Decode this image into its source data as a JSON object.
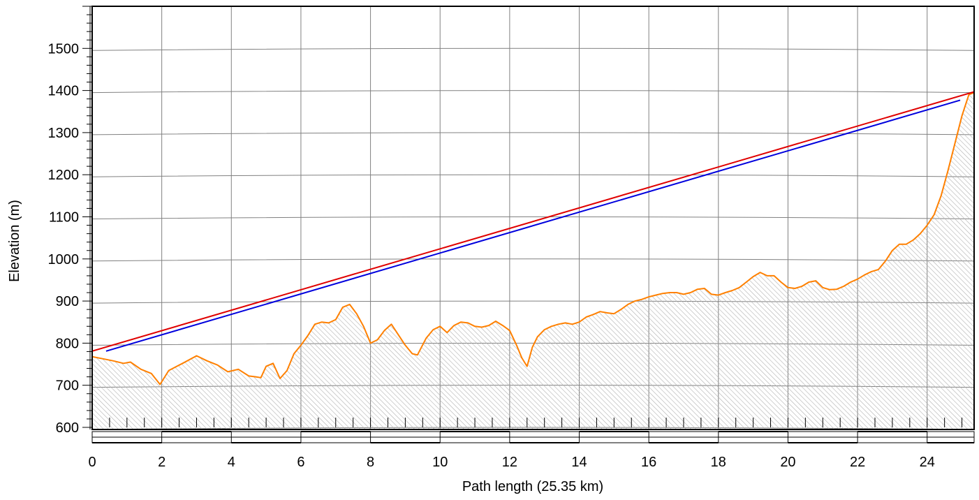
{
  "chart_data": {
    "type": "area",
    "xlabel": "Path length (25.35 km)",
    "ylabel": "Elevation (m)",
    "xlim": [
      0,
      25.35
    ],
    "ylim": [
      595,
      1600
    ],
    "x_ticks": [
      0,
      2,
      4,
      6,
      8,
      10,
      12,
      14,
      16,
      18,
      20,
      22,
      24
    ],
    "y_ticks": [
      600,
      700,
      800,
      900,
      1000,
      1100,
      1200,
      1300,
      1400,
      1500
    ],
    "grid": true,
    "colors": {
      "terrain": "#ff8000",
      "line_of_sight": "#e00000",
      "fresnel": "#0000dd",
      "fill_hatch": "#b0b0b0",
      "grid": "#808080"
    },
    "series": [
      {
        "x": [
          0,
          0.3,
          0.6,
          0.9,
          1.1,
          1.4,
          1.7,
          1.95,
          2.2,
          2.6,
          3.0,
          3.3,
          3.6,
          3.9,
          4.2,
          4.5,
          4.7,
          4.85,
          5.0,
          5.2,
          5.4,
          5.6,
          5.8,
          6.0,
          6.2,
          6.4,
          6.6,
          6.8,
          7.0,
          7.2,
          7.4,
          7.6,
          7.8,
          8.0,
          8.2,
          8.4,
          8.6,
          8.8,
          9.0,
          9.2,
          9.35,
          9.6,
          9.8,
          10.0,
          10.2,
          10.4,
          10.6,
          10.8,
          11.0,
          11.2,
          11.4,
          11.6,
          11.8,
          12.0,
          12.2,
          12.35,
          12.5,
          12.65,
          12.8,
          13.0,
          13.2,
          13.4,
          13.6,
          13.8,
          14.0,
          14.2,
          14.4,
          14.6,
          14.8,
          15.0,
          15.2,
          15.4,
          15.6,
          15.8,
          16.0,
          16.2,
          16.4,
          16.6,
          16.8,
          17.0,
          17.2,
          17.4,
          17.6,
          17.8,
          18.0,
          18.2,
          18.4,
          18.6,
          18.8,
          19.0,
          19.2,
          19.4,
          19.6,
          19.8,
          20.0,
          20.2,
          20.4,
          20.6,
          20.8,
          21.0,
          21.2,
          21.4,
          21.6,
          21.8,
          22.0,
          22.2,
          22.4,
          22.6,
          22.8,
          23.0,
          23.2,
          23.4,
          23.6,
          23.8,
          24.0,
          24.2,
          24.4,
          24.6,
          24.8,
          25.0,
          25.1,
          25.2,
          25.35
        ],
        "y": [
          768,
          763,
          758,
          752,
          755,
          738,
          728,
          702,
          735,
          752,
          770,
          758,
          748,
          732,
          738,
          722,
          720,
          718,
          745,
          752,
          716,
          735,
          775,
          795,
          818,
          845,
          850,
          848,
          856,
          885,
          892,
          870,
          840,
          800,
          808,
          830,
          845,
          820,
          795,
          775,
          772,
          812,
          832,
          840,
          825,
          842,
          850,
          848,
          840,
          838,
          842,
          852,
          842,
          830,
          795,
          765,
          745,
          790,
          815,
          832,
          840,
          845,
          848,
          845,
          850,
          862,
          868,
          875,
          872,
          870,
          880,
          892,
          900,
          904,
          910,
          914,
          918,
          920,
          920,
          916,
          920,
          928,
          930,
          916,
          914,
          920,
          925,
          932,
          945,
          958,
          968,
          960,
          960,
          945,
          932,
          930,
          935,
          945,
          948,
          932,
          927,
          928,
          935,
          945,
          952,
          962,
          970,
          975,
          995,
          1020,
          1035,
          1035,
          1045,
          1060,
          1080,
          1105,
          1150,
          1210,
          1275,
          1340,
          1365,
          1390,
          1395
        ]
      },
      {
        "x": [
          0,
          25.35
        ],
        "y": [
          781,
          1397
        ]
      },
      {
        "x": [
          0.4,
          24.95
        ],
        "y": [
          781,
          1377
        ]
      }
    ]
  }
}
